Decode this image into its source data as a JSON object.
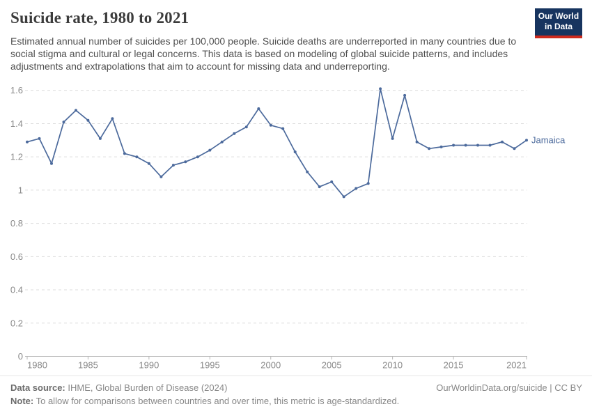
{
  "header": {
    "title": "Suicide rate, 1980 to 2021",
    "subtitle": "Estimated annual number of suicides per 100,000 people. Suicide deaths are underreported in many countries due to social stigma and cultural or legal concerns. This data is based on modeling of global suicide patterns, and includes adjustments and extrapolations that aim to account for missing data and underreporting.",
    "logo_line1": "Our World",
    "logo_line2": "in Data",
    "logo_colors": {
      "background": "#17345f",
      "stripe": "#ce2a1d",
      "text": "#ffffff"
    }
  },
  "chart_data": {
    "type": "line",
    "title": "Suicide rate, 1980 to 2021",
    "ylabel": "",
    "xlabel": "",
    "xlim": [
      1980,
      2021
    ],
    "ylim": [
      0,
      1.6
    ],
    "grid": "horizontal-dashed",
    "legend_position": "end-of-line-label",
    "x_ticks": [
      {
        "value": 1980,
        "label": "1980"
      },
      {
        "value": 1985,
        "label": "1985"
      },
      {
        "value": 1990,
        "label": "1990"
      },
      {
        "value": 1995,
        "label": "1995"
      },
      {
        "value": 2000,
        "label": "2000"
      },
      {
        "value": 2005,
        "label": "2005"
      },
      {
        "value": 2010,
        "label": "2010"
      },
      {
        "value": 2015,
        "label": "2015"
      },
      {
        "value": 2021,
        "label": "2021"
      }
    ],
    "y_ticks": [
      {
        "value": 0,
        "label": "0"
      },
      {
        "value": 0.2,
        "label": "0.2"
      },
      {
        "value": 0.4,
        "label": "0.4"
      },
      {
        "value": 0.6,
        "label": "0.6"
      },
      {
        "value": 0.8,
        "label": "0.8"
      },
      {
        "value": 1,
        "label": "1"
      },
      {
        "value": 1.2,
        "label": "1.2"
      },
      {
        "value": 1.4,
        "label": "1.4"
      },
      {
        "value": 1.6,
        "label": "1.6"
      }
    ],
    "series": [
      {
        "name": "Jamaica",
        "color": "#4C6A9C",
        "x": [
          1980,
          1981,
          1982,
          1983,
          1984,
          1985,
          1986,
          1987,
          1988,
          1989,
          1990,
          1991,
          1992,
          1993,
          1994,
          1995,
          1996,
          1997,
          1998,
          1999,
          2000,
          2001,
          2002,
          2003,
          2004,
          2005,
          2006,
          2007,
          2008,
          2009,
          2010,
          2011,
          2012,
          2013,
          2014,
          2015,
          2016,
          2017,
          2018,
          2019,
          2020,
          2021
        ],
        "values": [
          1.29,
          1.31,
          1.16,
          1.41,
          1.48,
          1.42,
          1.31,
          1.43,
          1.22,
          1.2,
          1.16,
          1.08,
          1.15,
          1.17,
          1.2,
          1.24,
          1.29,
          1.34,
          1.38,
          1.49,
          1.39,
          1.37,
          1.23,
          1.11,
          1.02,
          1.05,
          0.96,
          1.01,
          1.04,
          1.61,
          1.31,
          1.57,
          1.29,
          1.25,
          1.26,
          1.27,
          1.27,
          1.27,
          1.27,
          1.29,
          1.25,
          1.3
        ]
      }
    ],
    "colors": {
      "gridline": "#dcdcdc",
      "axis": "#b6b6b6",
      "tick_text": "#8a8a8a"
    }
  },
  "footer": {
    "datasource_label": "Data source:",
    "datasource_text": "IHME, Global Burden of Disease (2024)",
    "note_label": "Note:",
    "note_text": "To allow for comparisons between countries and over time, this metric is age-standardized.",
    "link": "OurWorldinData.org/suicide | CC BY"
  }
}
